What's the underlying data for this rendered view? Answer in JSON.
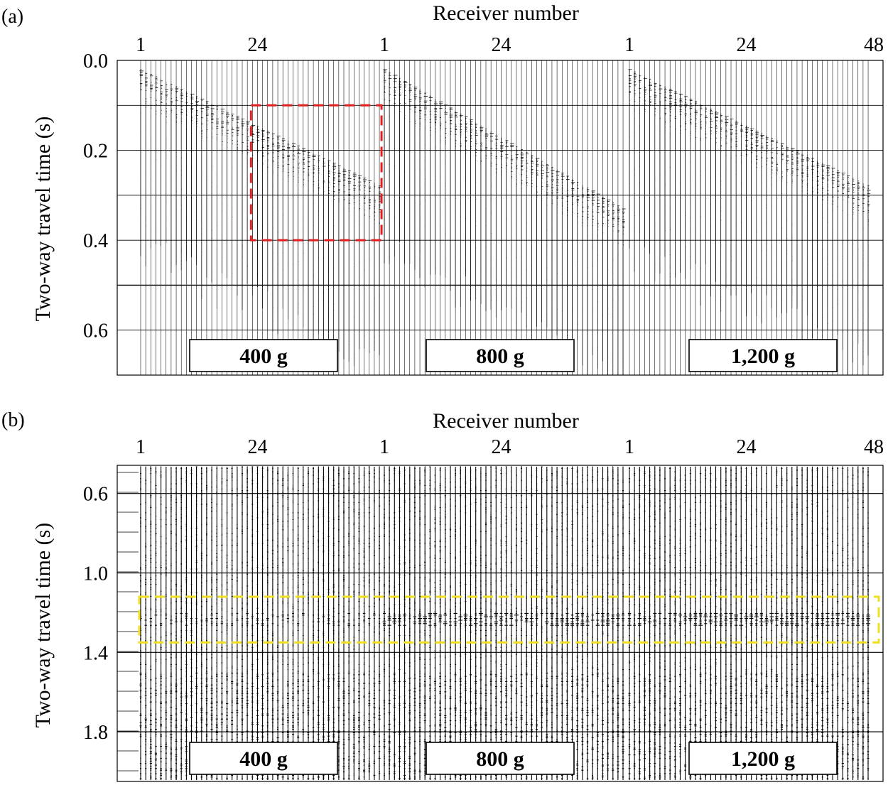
{
  "chart_data": [
    {
      "type": "seismic-shot-gathers",
      "panel_label": "(a)",
      "xlabel": "Receiver number",
      "ylabel": "Two-way travel time  (s)",
      "x_ticks": [
        "1",
        "24",
        "1",
        "24",
        "1",
        "24",
        "48"
      ],
      "y_ticks": [
        "0.0",
        "0.2",
        "0.4",
        "0.6"
      ],
      "ylim": [
        0.0,
        0.7
      ],
      "gathers": [
        {
          "label": "400 g",
          "receivers": 48
        },
        {
          "label": "800 g",
          "receivers": 48
        },
        {
          "label": "1,200 g",
          "receivers": 48
        }
      ],
      "highlight_box": {
        "color": "#e02020",
        "gather": "400 g",
        "receiver_range": [
          23,
          48
        ],
        "time_range": [
          0.1,
          0.4
        ]
      }
    },
    {
      "type": "seismic-shot-gathers",
      "panel_label": "(b)",
      "xlabel": "Receiver number",
      "ylabel": "Two-way travel time  (s)",
      "x_ticks": [
        "1",
        "24",
        "1",
        "24",
        "1",
        "24",
        "48"
      ],
      "y_ticks": [
        "0.6",
        "1.0",
        "1.4",
        "1.8"
      ],
      "ylim": [
        0.48,
        2.05
      ],
      "gathers": [
        {
          "label": "400 g",
          "receivers": 48
        },
        {
          "label": "800 g",
          "receivers": 48
        },
        {
          "label": "1,200 g",
          "receivers": 48
        }
      ],
      "highlight_box": {
        "color": "#f0e020",
        "gather": "all",
        "receiver_range": [
          1,
          48
        ],
        "time_range": [
          1.12,
          1.35
        ]
      }
    }
  ]
}
